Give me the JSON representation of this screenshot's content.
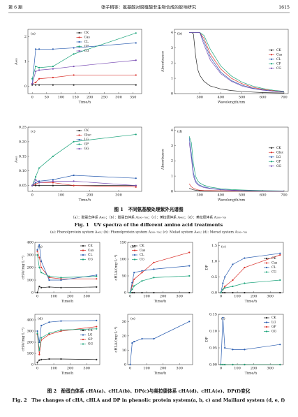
{
  "header": {
    "issue": "第 6 期",
    "title": "张子桐等：氨基酸对腐植酸非生物合成的影响研究",
    "page": "1615"
  },
  "figures": [
    {
      "caption_cn": "图 1　不同氨基酸处理紫外光谱图",
      "subcaption_cn": "（a）：酚蛋白体系 A₄₆₅；（b）：酚蛋白体系 A₂₀₀₋₇₀₀；（c）：美拉德体系 A₄₆₅；（d）：美拉德体系 A₂₀₀₋₇₀₀",
      "caption_en": "Fig. 1　UV spectra of the different amino acid treatments",
      "subcaption_en": "(a): Phenolprotein system A₄₆₅; (b): Phenolprotein system A₂₀₀₋₇₀₀; (c): Melad system A₄₆₅; (d): Merad system A₂₀₀₋₇₀₀"
    },
    {
      "caption_cn": "图 2　酚蛋白体系 cHA(a)、cHLA(b)、DP(c)与美拉德体系 cHA(d)、cHLA(e)、DP(f)变化",
      "caption_en": "Fig. 2　The changes of cHA, cHLA and DP in phenolic protein system(a, b, c) and Maillard system (d, e, f)"
    }
  ],
  "chart_data": [
    {
      "type": "line",
      "panel": "(a)",
      "xlabel": "Time/h",
      "ylabel": "A₄₆₅",
      "x": [
        0,
        12,
        24,
        72,
        144,
        360
      ],
      "xlim": [
        -15,
        380
      ],
      "ylim": [
        -0.3,
        2.3
      ],
      "xticks": [
        0,
        50,
        100,
        150,
        200,
        250,
        300,
        350
      ],
      "yticks": [
        0,
        1,
        2
      ],
      "legend": "upper center",
      "markers": true,
      "series": [
        {
          "name": "CK",
          "color": "#222222",
          "values": [
            0.05,
            0.05,
            0.05,
            0.05,
            0.05,
            0.05
          ]
        },
        {
          "name": "Cas",
          "color": "#d9312b",
          "values": [
            0.1,
            0.15,
            0.3,
            0.35,
            0.45,
            0.45
          ]
        },
        {
          "name": "CL",
          "color": "#2a5db0",
          "values": [
            0.1,
            1.5,
            1.5,
            1.5,
            1.55,
            1.75
          ]
        },
        {
          "name": "CP",
          "color": "#1aa37a",
          "values": [
            0.3,
            0.8,
            0.75,
            0.8,
            1.3,
            2.15
          ]
        },
        {
          "name": "CG",
          "color": "#7b4fb5",
          "values": [
            0.1,
            0.6,
            0.65,
            0.7,
            0.8,
            1.05
          ]
        }
      ]
    },
    {
      "type": "line",
      "panel": "(b)",
      "xlabel": "Wavelength/nm",
      "ylabel": "Absorbance",
      "x": [
        250,
        260,
        270,
        280,
        290,
        300,
        320,
        350,
        400,
        450,
        500,
        550,
        600,
        650,
        700
      ],
      "xlim": [
        180,
        720
      ],
      "ylim": [
        0,
        4.2
      ],
      "xticks": [
        300,
        400,
        500,
        600,
        700
      ],
      "yticks": [
        0,
        1,
        2,
        3,
        4
      ],
      "legend": "center right",
      "markers": false,
      "series": [
        {
          "name": "CK",
          "color": "#222222",
          "values": [
            4,
            4,
            3.9,
            2.5,
            1.6,
            1.2,
            0.8,
            0.5,
            0.3,
            0.2,
            0.14,
            0.1,
            0.07,
            0.05,
            0.04
          ]
        },
        {
          "name": "Cas",
          "color": "#d9312b",
          "values": [
            4,
            4,
            4,
            4,
            4,
            4,
            3.6,
            2.6,
            1.6,
            1.0,
            0.65,
            0.42,
            0.28,
            0.19,
            0.13
          ]
        },
        {
          "name": "CL",
          "color": "#2a5db0",
          "values": [
            4,
            4,
            4,
            4,
            4,
            4,
            3.4,
            2.4,
            1.4,
            0.85,
            0.55,
            0.36,
            0.24,
            0.16,
            0.11
          ]
        },
        {
          "name": "CP",
          "color": "#1aa37a",
          "values": [
            4,
            4,
            4,
            4,
            4,
            4,
            3.8,
            2.9,
            1.8,
            1.15,
            0.75,
            0.5,
            0.33,
            0.22,
            0.15
          ]
        },
        {
          "name": "CG",
          "color": "#7b4fb5",
          "values": [
            4,
            4,
            4,
            4,
            4,
            4,
            3.2,
            2.2,
            1.3,
            0.8,
            0.5,
            0.33,
            0.22,
            0.15,
            0.1
          ]
        }
      ]
    },
    {
      "type": "line",
      "panel": "(c)",
      "xlabel": "Time/h",
      "ylabel": "A₄₆₅",
      "x": [
        0,
        12,
        24,
        72,
        144,
        360
      ],
      "xlim": [
        -15,
        380
      ],
      "ylim": [
        0.03,
        0.25
      ],
      "xticks": [
        0,
        100,
        200,
        300
      ],
      "yticks": [
        0.05,
        {
          "value": 0.1,
          "label": "0.10"
        },
        0.15,
        {
          "value": 0.2,
          "label": "0.20"
        },
        0.25
      ],
      "legend": "upper center",
      "markers": true,
      "series": [
        {
          "name": "CK",
          "color": "#222222",
          "values": [
            0.05,
            0.05,
            0.05,
            0.05,
            0.05,
            0.05
          ]
        },
        {
          "name": "Gluc",
          "color": "#d9312b",
          "values": [
            0.05,
            0.055,
            0.06,
            0.06,
            0.05,
            0.045
          ]
        },
        {
          "name": "LG",
          "color": "#2a5db0",
          "values": [
            0.05,
            0.06,
            0.065,
            0.07,
            0.085,
            0.075
          ]
        },
        {
          "name": "GP",
          "color": "#1aa37a",
          "values": [
            0.05,
            0.08,
            0.11,
            0.15,
            0.2,
            0.225
          ]
        },
        {
          "name": "GG",
          "color": "#7b4fb5",
          "values": [
            0.05,
            0.07,
            0.06,
            0.065,
            0.065,
            0.05
          ]
        }
      ]
    },
    {
      "type": "line",
      "panel": "(d)",
      "xlabel": "Wavelength/nm",
      "ylabel": "Absorbance",
      "x": [
        250,
        260,
        270,
        280,
        290,
        300,
        320,
        350,
        400,
        450,
        500,
        550,
        600,
        650,
        700
      ],
      "xlim": [
        180,
        720
      ],
      "ylim": [
        0,
        4.2
      ],
      "xticks": [
        300,
        400,
        500,
        600,
        700
      ],
      "yticks": [
        0,
        1,
        2,
        3,
        4
      ],
      "legend": "center right",
      "markers": false,
      "series": [
        {
          "name": "CK",
          "color": "#222222",
          "values": [
            0.2,
            0.15,
            0.1,
            0.08,
            0.06,
            0.05,
            0.04,
            0.03,
            0.02,
            0.02,
            0.01,
            0.01,
            0.01,
            0.01,
            0.01
          ]
        },
        {
          "name": "Gluc",
          "color": "#d9312b",
          "values": [
            0.5,
            0.3,
            0.2,
            0.15,
            0.1,
            0.08,
            0.06,
            0.05,
            0.04,
            0.03,
            0.02,
            0.02,
            0.02,
            0.01,
            0.01
          ]
        },
        {
          "name": "LG",
          "color": "#2a5db0",
          "values": [
            3.5,
            2.5,
            1.2,
            0.7,
            0.5,
            0.4,
            0.3,
            0.2,
            0.12,
            0.08,
            0.06,
            0.05,
            0.04,
            0.03,
            0.02
          ]
        },
        {
          "name": "GP",
          "color": "#1aa37a",
          "values": [
            3.6,
            3.2,
            1.8,
            1.0,
            0.7,
            0.55,
            0.4,
            0.28,
            0.18,
            0.12,
            0.09,
            0.07,
            0.05,
            0.04,
            0.03
          ]
        },
        {
          "name": "GG",
          "color": "#7b4fb5",
          "values": [
            3.2,
            2.2,
            1.0,
            0.6,
            0.45,
            0.35,
            0.25,
            0.18,
            0.1,
            0.07,
            0.05,
            0.04,
            0.03,
            0.02,
            0.02
          ]
        }
      ]
    },
    {
      "type": "line",
      "panel": "(a)",
      "xlabel": "Time/h",
      "ylabel": "cHA/(mg·L⁻¹)",
      "x": [
        0,
        12,
        24,
        72,
        144,
        360
      ],
      "xlim": [
        -15,
        380
      ],
      "ylim": [
        0,
        400
      ],
      "xticks": [
        0,
        100,
        200,
        300
      ],
      "yticks": [
        0,
        100,
        200,
        300,
        400
      ],
      "legend": "upper right",
      "markers": true,
      "series": [
        {
          "name": "CK",
          "color": "#222222",
          "values": [
            0,
            50,
            40,
            45,
            40,
            45
          ]
        },
        {
          "name": "Cas",
          "color": "#d9312b",
          "values": [
            330,
            280,
            200,
            120,
            110,
            110
          ]
        },
        {
          "name": "CL",
          "color": "#2a5db0",
          "values": [
            340,
            380,
            250,
            100,
            100,
            140
          ]
        },
        {
          "name": "CG",
          "color": "#1aa37a",
          "values": [
            300,
            200,
            160,
            130,
            120,
            130
          ]
        }
      ]
    },
    {
      "type": "line",
      "panel": "(b)",
      "xlabel": "Time/h",
      "ylabel": "cHLA/(mg·L⁻¹)",
      "x": [
        0,
        12,
        24,
        72,
        144,
        360
      ],
      "xlim": [
        -15,
        380
      ],
      "ylim": [
        0,
        150
      ],
      "xticks": [
        0,
        100,
        200,
        300
      ],
      "yticks": [
        0,
        50,
        100,
        150
      ],
      "legend": "upper left",
      "markers": true,
      "series": [
        {
          "name": "CK",
          "color": "#222222",
          "values": [
            0,
            0,
            0,
            0,
            0,
            0
          ]
        },
        {
          "name": "Cas",
          "color": "#d9312b",
          "values": [
            0,
            20,
            40,
            60,
            90,
            120
          ]
        },
        {
          "name": "CL",
          "color": "#2a5db0",
          "values": [
            0,
            30,
            60,
            65,
            70,
            80
          ]
        },
        {
          "name": "CG",
          "color": "#1aa37a",
          "values": [
            0,
            10,
            20,
            35,
            45,
            50
          ]
        }
      ]
    },
    {
      "type": "line",
      "panel": "(c)",
      "xlabel": "Time/h",
      "ylabel": "DP",
      "x": [
        0,
        12,
        24,
        72,
        144,
        360
      ],
      "xlim": [
        -15,
        380
      ],
      "ylim": [
        0,
        1.6
      ],
      "xticks": [
        0,
        100,
        200,
        300
      ],
      "yticks": [
        {
          "value": 0,
          "label": "0.0"
        },
        0.5,
        {
          "value": 1,
          "label": "1.0"
        },
        1.5
      ],
      "legend": "center right",
      "markers": true,
      "series": [
        {
          "name": "CK",
          "color": "#222222",
          "values": [
            0,
            0,
            0,
            0,
            0,
            0
          ]
        },
        {
          "name": "Cas",
          "color": "#d9312b",
          "values": [
            0,
            0.1,
            0.2,
            0.4,
            0.8,
            1.2
          ]
        },
        {
          "name": "CL",
          "color": "#2a5db0",
          "values": [
            0,
            0.3,
            0.5,
            0.9,
            1.1,
            1.25
          ]
        },
        {
          "name": "CG",
          "color": "#1aa37a",
          "values": [
            0,
            0.1,
            0.15,
            0.2,
            0.3,
            0.4
          ]
        }
      ]
    },
    {
      "type": "line",
      "panel": "(d)",
      "xlabel": "Time/h",
      "ylabel": "cHA/(mg·L⁻¹)",
      "x": [
        0,
        12,
        24,
        72,
        144,
        360
      ],
      "xlim": [
        -15,
        380
      ],
      "ylim": [
        0,
        450
      ],
      "xticks": [
        0,
        100,
        200,
        300
      ],
      "yticks": [
        0,
        100,
        200,
        300,
        400
      ],
      "legend": "center right",
      "markers": true,
      "series": [
        {
          "name": "CK",
          "color": "#222222",
          "values": [
            20,
            40,
            45,
            50,
            50,
            45
          ]
        },
        {
          "name": "LG",
          "color": "#2a5db0",
          "values": [
            300,
            200,
            350,
            380,
            390,
            395
          ]
        },
        {
          "name": "GP",
          "color": "#d9312b",
          "values": [
            270,
            90,
            220,
            270,
            300,
            340
          ]
        },
        {
          "name": "GG",
          "color": "#1aa37a",
          "values": [
            280,
            130,
            240,
            280,
            310,
            320
          ]
        }
      ]
    },
    {
      "type": "line",
      "panel": "(e)",
      "xlabel": "Time/h",
      "ylabel": "cHLA/(mg·L⁻¹)",
      "x": [
        0,
        12,
        24,
        72,
        144,
        360
      ],
      "xlim": [
        -15,
        380
      ],
      "ylim": [
        0,
        35
      ],
      "xticks": [
        0,
        100,
        200,
        300
      ],
      "yticks": [
        0,
        10,
        20,
        30
      ],
      "legend": "upper right",
      "markers": true,
      "series": [
        {
          "color": "#2a5db0",
          "values": [
            0,
            15,
            16,
            18,
            18,
            30
          ]
        }
      ]
    },
    {
      "type": "line",
      "panel": "(f)",
      "xlabel": "Time/h",
      "ylabel": "DP",
      "x": [
        0,
        12,
        24,
        72,
        144,
        360
      ],
      "xlim": [
        -15,
        380
      ],
      "ylim": [
        0,
        0.15
      ],
      "xticks": [
        0,
        100,
        200,
        300
      ],
      "yticks": [
        {
          "value": 0,
          "label": "0.00"
        },
        0.05,
        {
          "value": 0.1,
          "label": "0.10"
        },
        0.15
      ],
      "legend": "upper right",
      "markers": true,
      "series": [
        {
          "name": "CK",
          "color": "#222222",
          "values": [
            0,
            0,
            0,
            0,
            0,
            0
          ]
        },
        {
          "name": "LG",
          "color": "#2a5db0",
          "values": [
            0,
            0.14,
            0.05,
            0.045,
            0.045,
            0.06
          ]
        },
        {
          "name": "GP",
          "color": "#d9312b",
          "values": [
            0,
            0,
            0,
            0,
            0,
            0
          ]
        },
        {
          "name": "GG",
          "color": "#1aa37a",
          "values": [
            0,
            0,
            0,
            0,
            0,
            0
          ]
        }
      ]
    }
  ]
}
